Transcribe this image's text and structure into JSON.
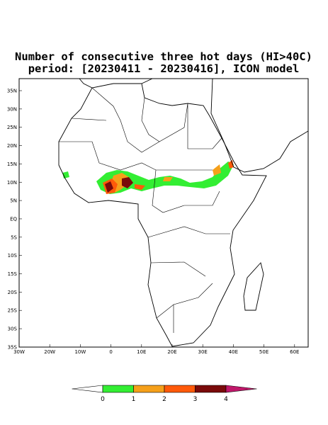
{
  "title": [
    "Number of consecutive three hot days (HI>40C)",
    "period: [20230411 - 20230416], ICON model"
  ],
  "map": {
    "lat_ticks": [
      "35N",
      "30N",
      "25N",
      "20N",
      "15N",
      "10N",
      "5N",
      "EQ",
      "5S",
      "10S",
      "15S",
      "20S",
      "25S",
      "30S",
      "35S"
    ],
    "lon_ticks": [
      "30W",
      "20W",
      "10W",
      "0",
      "10E",
      "20E",
      "30E",
      "40E",
      "50E",
      "60E"
    ]
  },
  "colorbar": {
    "labels": [
      0,
      1,
      2,
      3,
      4
    ],
    "colors": [
      "#ffffff",
      "#33ee33",
      "#f5a01a",
      "#ff5a0a",
      "#7a0a0a",
      "#c0186a"
    ]
  }
}
